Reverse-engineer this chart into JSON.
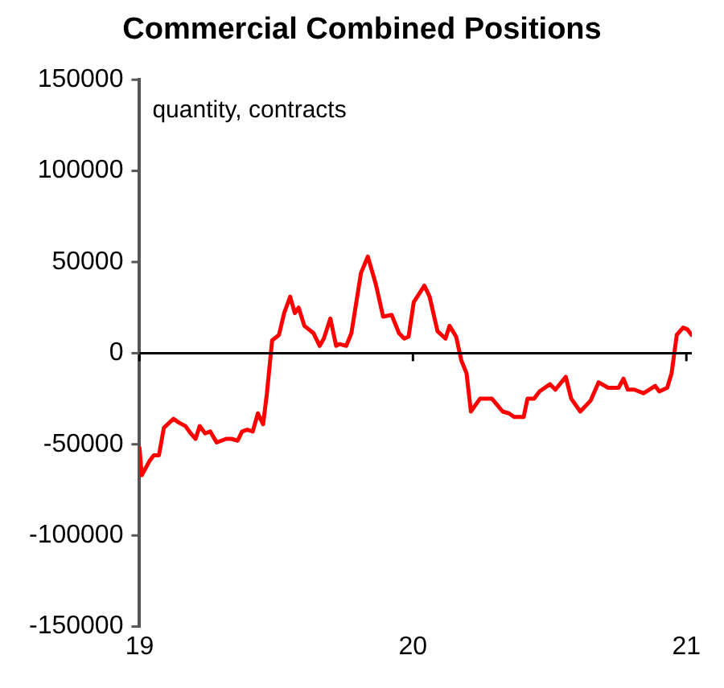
{
  "chart_data": {
    "type": "line",
    "title": "Commercial Combined Positions",
    "ylabel": "quantity, contracts",
    "xlim": [
      2019,
      2021.02
    ],
    "xticks": [
      {
        "value": 2019,
        "label": "19"
      },
      {
        "value": 2020,
        "label": "20"
      },
      {
        "value": 2021,
        "label": "21"
      }
    ],
    "ylim": [
      -150000,
      150000
    ],
    "yticks": [
      -150000,
      -100000,
      -50000,
      0,
      50000,
      100000,
      150000
    ],
    "grid": false,
    "ref_lines": [
      {
        "axis": "y",
        "value": 0,
        "color": "#000000"
      }
    ],
    "legend": false,
    "marker": "none",
    "line_style": "solid",
    "x": [
      2019.0,
      2019.008,
      2019.037,
      2019.052,
      2019.071,
      2019.089,
      2019.124,
      2019.143,
      2019.168,
      2019.187,
      2019.205,
      2019.22,
      2019.24,
      2019.259,
      2019.282,
      2019.317,
      2019.336,
      2019.359,
      2019.375,
      2019.394,
      2019.414,
      2019.433,
      2019.452,
      2019.466,
      2019.485,
      2019.51,
      2019.529,
      2019.551,
      2019.568,
      2019.582,
      2019.603,
      2019.636,
      2019.659,
      2019.674,
      2019.698,
      2019.719,
      2019.732,
      2019.756,
      2019.775,
      2019.81,
      2019.835,
      2019.864,
      2019.891,
      2019.922,
      2019.949,
      2019.968,
      2019.984,
      2020.003,
      2020.042,
      2020.061,
      2020.09,
      2020.119,
      2020.134,
      2020.158,
      2020.177,
      2020.196,
      2020.212,
      2020.245,
      2020.289,
      2020.328,
      2020.351,
      2020.37,
      2020.405,
      2020.419,
      2020.443,
      2020.463,
      2020.501,
      2020.521,
      2020.559,
      2020.579,
      2020.612,
      2020.65,
      2020.679,
      2020.714,
      2020.752,
      2020.77,
      2020.786,
      2020.81,
      2020.843,
      2020.886,
      2020.901,
      2020.93,
      2020.946,
      2020.965,
      2020.988,
      2021.004,
      2021.019
    ],
    "series": [
      {
        "color": "#ff0000",
        "values": [
          -52000,
          -67000,
          -59000,
          -56000,
          -56000,
          -41000,
          -36000,
          -38000,
          -40000,
          -44000,
          -47000,
          -40000,
          -44000,
          -43000,
          -49000,
          -47000,
          -47000,
          -48000,
          -43000,
          -42000,
          -43000,
          -33000,
          -39000,
          -22000,
          7000,
          10000,
          22000,
          31000,
          22000,
          25000,
          15000,
          11000,
          4000,
          8000,
          19000,
          4000,
          5000,
          4000,
          11000,
          44000,
          53000,
          38000,
          20000,
          21000,
          11000,
          8000,
          9000,
          28000,
          37000,
          31000,
          12000,
          8000,
          15000,
          9000,
          -4000,
          -11000,
          -32000,
          -25000,
          -25000,
          -32000,
          -33000,
          -35000,
          -35000,
          -25000,
          -25000,
          -21000,
          -17000,
          -20000,
          -13000,
          -25000,
          -32000,
          -26000,
          -16000,
          -19000,
          -19000,
          -14000,
          -20000,
          -20000,
          -22000,
          -18000,
          -21000,
          -19000,
          -11000,
          10000,
          14000,
          13000,
          10000
        ]
      }
    ]
  }
}
